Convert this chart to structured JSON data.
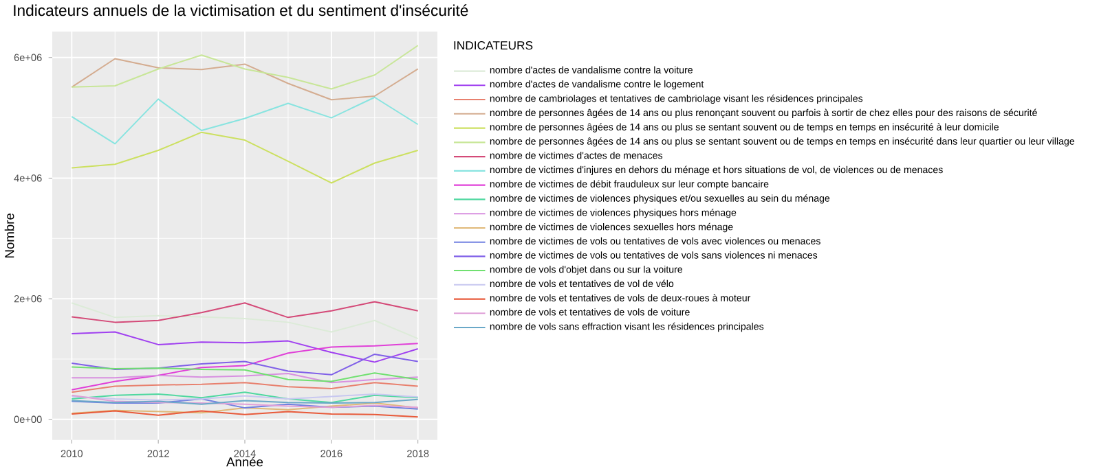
{
  "chart_data": {
    "type": "line",
    "title": "Indicateurs annuels de la victimisation et du sentiment d'insécurité",
    "xlabel": "Année",
    "ylabel": "Nombre",
    "legend_title": "INDICATEURS",
    "legend": "right",
    "grid": true,
    "x": [
      2010,
      2011,
      2012,
      2013,
      2014,
      2015,
      2016,
      2017,
      2018
    ],
    "xlim": [
      2009.55,
      2018.45
    ],
    "xticks": [
      2010,
      2012,
      2014,
      2016,
      2018
    ],
    "ylim": [
      -340000,
      6430000
    ],
    "yticks": [
      {
        "value": 0,
        "label": "0e+00"
      },
      {
        "value": 2000000,
        "label": "2e+06"
      },
      {
        "value": 4000000,
        "label": "4e+06"
      },
      {
        "value": 6000000,
        "label": "6e+06"
      }
    ],
    "series": [
      {
        "name": "nombre d'actes de vandalisme contre la voiture",
        "color": "#dcebd8",
        "values": [
          1930000,
          1690000,
          1720000,
          1700000,
          1670000,
          1610000,
          1450000,
          1640000,
          1340000
        ]
      },
      {
        "name": "nombre d'actes de vandalisme contre le logement",
        "color": "#a040f0",
        "values": [
          1420000,
          1450000,
          1240000,
          1280000,
          1270000,
          1300000,
          1110000,
          950000,
          1170000
        ]
      },
      {
        "name": "nombre de cambriolages et tentatives de cambriolage visant les résidences principales",
        "color": "#e8806e",
        "values": [
          450000,
          550000,
          570000,
          580000,
          610000,
          540000,
          510000,
          610000,
          550000
        ]
      },
      {
        "name": "nombre de personnes âgées de 14 ans ou  plus renonçant souvent ou parfois à sortir de chez elles pour des raisons de sécurité",
        "color": "#d4ac90",
        "values": [
          5510000,
          5980000,
          5830000,
          5800000,
          5890000,
          5570000,
          5300000,
          5360000,
          5810000
        ]
      },
      {
        "name": "nombre de personnes âgées de 14 ans ou  plus se sentant souvent ou de temps en temps en insécurité à leur domicile",
        "color": "#cce060",
        "values": [
          4170000,
          4230000,
          4460000,
          4760000,
          4630000,
          4280000,
          3920000,
          4250000,
          4460000
        ]
      },
      {
        "name": "nombre de personnes âgées de 14 ans ou  plus se sentant souvent ou de temps en temps en insécurité dans leur quartier ou leur village",
        "color": "#c8e698",
        "values": [
          5510000,
          5530000,
          5810000,
          6040000,
          5810000,
          5670000,
          5480000,
          5710000,
          6200000
        ]
      },
      {
        "name": "nombre de victimes d'actes de menaces",
        "color": "#d44a78",
        "values": [
          1700000,
          1610000,
          1640000,
          1770000,
          1930000,
          1690000,
          1800000,
          1950000,
          1800000
        ]
      },
      {
        "name": "nombre de victimes d'injures en dehors du ménage et hors situations de vol, de violences ou de menaces",
        "color": "#88e4e0",
        "values": [
          5020000,
          4570000,
          5310000,
          4790000,
          4990000,
          5240000,
          5000000,
          5340000,
          4890000
        ]
      },
      {
        "name": "nombre de victimes de débit frauduleux sur leur compte bancaire",
        "color": "#e040d8",
        "values": [
          490000,
          630000,
          730000,
          860000,
          890000,
          1100000,
          1200000,
          1220000,
          1260000
        ]
      },
      {
        "name": "nombre de victimes de violences physiques et/ou sexuelles au sein du ménage",
        "color": "#50d8a0",
        "values": [
          340000,
          400000,
          420000,
          360000,
          450000,
          340000,
          280000,
          400000,
          360000
        ]
      },
      {
        "name": "nombre de victimes de violences physiques hors ménage",
        "color": "#d890e0",
        "values": [
          690000,
          690000,
          730000,
          700000,
          720000,
          760000,
          610000,
          660000,
          700000
        ]
      },
      {
        "name": "nombre de victimes de violences sexuelles hors ménage",
        "color": "#e0b878",
        "values": [
          100000,
          150000,
          130000,
          110000,
          190000,
          160000,
          220000,
          270000,
          190000
        ]
      },
      {
        "name": "nombre de victimes de vols ou tentatives de vols avec violences ou menaces",
        "color": "#7080e0",
        "values": [
          300000,
          270000,
          270000,
          340000,
          190000,
          250000,
          200000,
          220000,
          170000
        ]
      },
      {
        "name": "nombre de victimes de vols ou tentatives de vols sans violences ni menaces",
        "color": "#8060e8",
        "values": [
          930000,
          830000,
          850000,
          920000,
          960000,
          800000,
          740000,
          1080000,
          960000
        ]
      },
      {
        "name": "nombre de vols d'objet dans ou sur la voiture",
        "color": "#70e070",
        "values": [
          870000,
          840000,
          850000,
          830000,
          820000,
          660000,
          630000,
          770000,
          660000
        ]
      },
      {
        "name": "nombre de vols et tentatives  de vol de vélo",
        "color": "#c8c8f0",
        "values": [
          380000,
          340000,
          320000,
          340000,
          390000,
          340000,
          380000,
          420000,
          370000
        ]
      },
      {
        "name": "nombre de vols et tentatives de vols de deux-roues à moteur",
        "color": "#e85a3a",
        "values": [
          90000,
          140000,
          70000,
          140000,
          80000,
          130000,
          90000,
          80000,
          40000
        ]
      },
      {
        "name": "nombre de vols et tentatives de vols de voiture",
        "color": "#e0a0d8",
        "values": [
          400000,
          300000,
          280000,
          270000,
          250000,
          220000,
          200000,
          230000,
          200000
        ]
      },
      {
        "name": "nombre de vols sans effraction visant les résidences principales",
        "color": "#6aa8c8",
        "values": [
          310000,
          280000,
          300000,
          250000,
          310000,
          280000,
          270000,
          280000,
          330000
        ]
      }
    ]
  }
}
